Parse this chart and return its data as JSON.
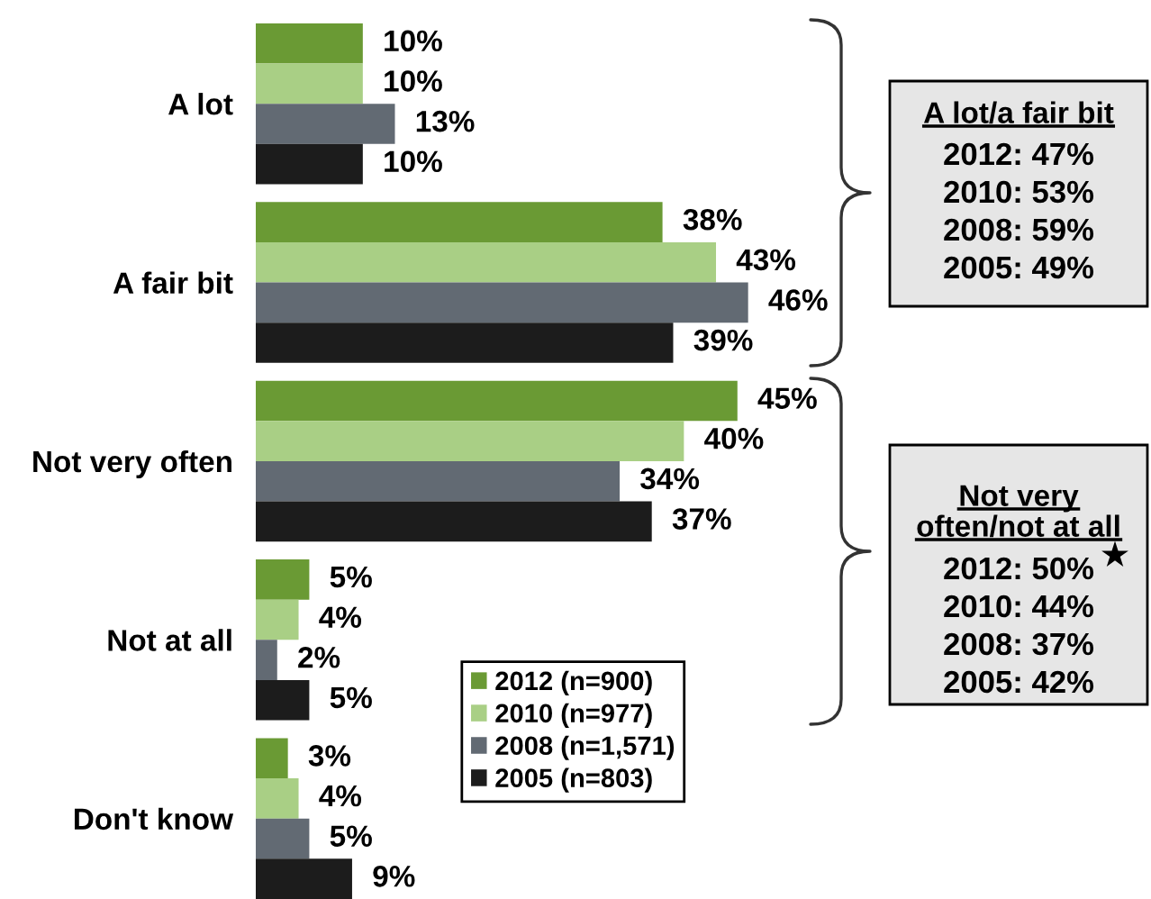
{
  "chart_data": {
    "type": "bar",
    "orientation": "horizontal",
    "categories": [
      "A lot",
      "A fair bit",
      "Not very often",
      "Not at all",
      "Don't know"
    ],
    "series": [
      {
        "name": "2012 (n=900)",
        "color": "#6a9a34",
        "values": [
          10,
          38,
          45,
          5,
          3
        ],
        "value_labels": [
          "10%",
          "38%",
          "45%",
          "5%",
          "3%"
        ]
      },
      {
        "name": "2010 (n=977)",
        "color": "#a9cf85",
        "values": [
          10,
          43,
          40,
          4,
          4
        ],
        "value_labels": [
          "10%",
          "43%",
          "40%",
          "4%",
          "4%"
        ]
      },
      {
        "name": "2008 (n=1,571)",
        "color": "#626a73",
        "values": [
          13,
          46,
          34,
          2,
          5
        ],
        "value_labels": [
          "13%",
          "46%",
          "34%",
          "2%",
          "5%"
        ]
      },
      {
        "name": "2005 (n=803)",
        "color": "#1c1c1c",
        "values": [
          10,
          39,
          37,
          5,
          9
        ],
        "value_labels": [
          "10%",
          "39%",
          "37%",
          "5%",
          "9%"
        ]
      }
    ],
    "legend": "bottom",
    "annotations": [
      "A lot/a fair bit",
      "2012: 47%",
      "2010: 53%",
      "2008: 59%",
      "2005: 49%",
      "Not very\noften/not at all",
      "★",
      "2012: 50%",
      "2010: 44%",
      "2008: 37%",
      "2005: 42%"
    ]
  }
}
